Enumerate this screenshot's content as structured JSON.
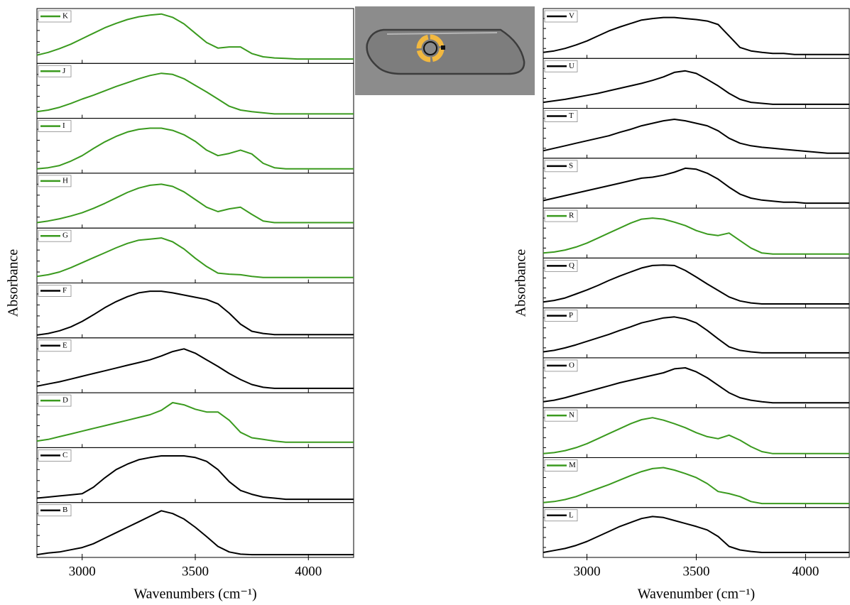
{
  "chart_data": [
    {
      "type": "line",
      "xlabel": "Wavenumbers (cm⁻¹)",
      "ylabel": "Absorbance",
      "xlim": [
        2800,
        4200
      ],
      "xticks": [
        3000,
        3500,
        4000
      ],
      "ylim": [
        0,
        1
      ],
      "x": [
        2800,
        2850,
        2900,
        2950,
        3000,
        3050,
        3100,
        3150,
        3200,
        3250,
        3300,
        3350,
        3400,
        3450,
        3500,
        3550,
        3600,
        3650,
        3700,
        3750,
        3800,
        3850,
        3900,
        3950,
        4000,
        4050,
        4100,
        4150,
        4200
      ],
      "series": [
        {
          "name": "K",
          "color": "#3a9a1e",
          "values": [
            0.15,
            0.2,
            0.27,
            0.35,
            0.45,
            0.55,
            0.65,
            0.73,
            0.8,
            0.85,
            0.88,
            0.9,
            0.84,
            0.72,
            0.55,
            0.38,
            0.28,
            0.3,
            0.3,
            0.18,
            0.12,
            0.1,
            0.09,
            0.08,
            0.08,
            0.08,
            0.08,
            0.08,
            0.08
          ]
        },
        {
          "name": "J",
          "color": "#3a9a1e",
          "values": [
            0.12,
            0.15,
            0.2,
            0.27,
            0.35,
            0.42,
            0.5,
            0.58,
            0.65,
            0.72,
            0.78,
            0.82,
            0.8,
            0.72,
            0.6,
            0.48,
            0.35,
            0.22,
            0.15,
            0.12,
            0.1,
            0.08,
            0.08,
            0.08,
            0.08,
            0.08,
            0.08,
            0.08,
            0.08
          ]
        },
        {
          "name": "I",
          "color": "#3a9a1e",
          "values": [
            0.08,
            0.1,
            0.14,
            0.22,
            0.32,
            0.45,
            0.57,
            0.67,
            0.75,
            0.8,
            0.82,
            0.82,
            0.78,
            0.7,
            0.58,
            0.42,
            0.32,
            0.36,
            0.42,
            0.35,
            0.18,
            0.1,
            0.08,
            0.08,
            0.08,
            0.08,
            0.08,
            0.08,
            0.08
          ]
        },
        {
          "name": "H",
          "color": "#3a9a1e",
          "values": [
            0.1,
            0.13,
            0.17,
            0.22,
            0.28,
            0.36,
            0.45,
            0.55,
            0.65,
            0.73,
            0.78,
            0.8,
            0.76,
            0.66,
            0.52,
            0.38,
            0.3,
            0.35,
            0.38,
            0.25,
            0.13,
            0.1,
            0.1,
            0.1,
            0.1,
            0.1,
            0.1,
            0.1,
            0.1
          ]
        },
        {
          "name": "G",
          "color": "#3a9a1e",
          "values": [
            0.12,
            0.15,
            0.2,
            0.28,
            0.37,
            0.46,
            0.55,
            0.64,
            0.72,
            0.78,
            0.8,
            0.82,
            0.75,
            0.62,
            0.45,
            0.3,
            0.18,
            0.16,
            0.15,
            0.12,
            0.1,
            0.1,
            0.1,
            0.1,
            0.1,
            0.1,
            0.1,
            0.1,
            0.1
          ]
        },
        {
          "name": "F",
          "color": "#000000",
          "values": [
            0.05,
            0.08,
            0.13,
            0.2,
            0.3,
            0.42,
            0.55,
            0.66,
            0.75,
            0.82,
            0.85,
            0.85,
            0.82,
            0.78,
            0.74,
            0.7,
            0.62,
            0.45,
            0.25,
            0.12,
            0.08,
            0.06,
            0.06,
            0.06,
            0.06,
            0.06,
            0.06,
            0.06,
            0.06
          ]
        },
        {
          "name": "E",
          "color": "#000000",
          "values": [
            0.12,
            0.16,
            0.2,
            0.25,
            0.3,
            0.35,
            0.4,
            0.45,
            0.5,
            0.55,
            0.6,
            0.67,
            0.75,
            0.8,
            0.72,
            0.6,
            0.48,
            0.35,
            0.24,
            0.15,
            0.1,
            0.08,
            0.08,
            0.08,
            0.08,
            0.08,
            0.08,
            0.08,
            0.08
          ]
        },
        {
          "name": "D",
          "color": "#3a9a1e",
          "values": [
            0.12,
            0.15,
            0.2,
            0.25,
            0.3,
            0.35,
            0.4,
            0.45,
            0.5,
            0.55,
            0.6,
            0.68,
            0.82,
            0.78,
            0.7,
            0.65,
            0.65,
            0.5,
            0.28,
            0.18,
            0.15,
            0.12,
            0.1,
            0.1,
            0.1,
            0.1,
            0.1,
            0.1,
            0.1
          ]
        },
        {
          "name": "C",
          "color": "#000000",
          "values": [
            0.08,
            0.1,
            0.12,
            0.14,
            0.16,
            0.28,
            0.45,
            0.6,
            0.7,
            0.78,
            0.82,
            0.85,
            0.85,
            0.85,
            0.82,
            0.75,
            0.6,
            0.38,
            0.22,
            0.15,
            0.1,
            0.08,
            0.06,
            0.06,
            0.06,
            0.06,
            0.06,
            0.06,
            0.06
          ]
        },
        {
          "name": "B",
          "color": "#000000",
          "values": [
            0.05,
            0.08,
            0.1,
            0.14,
            0.18,
            0.25,
            0.35,
            0.45,
            0.55,
            0.65,
            0.75,
            0.85,
            0.8,
            0.7,
            0.55,
            0.38,
            0.2,
            0.1,
            0.06,
            0.05,
            0.05,
            0.05,
            0.05,
            0.05,
            0.05,
            0.05,
            0.05,
            0.05,
            0.05
          ]
        }
      ]
    },
    {
      "type": "line",
      "xlabel": "Wavenumber (cm⁻¹)",
      "ylabel": "Absorbance",
      "xlim": [
        2800,
        4200
      ],
      "xticks": [
        3000,
        3500,
        4000
      ],
      "ylim": [
        0,
        1
      ],
      "x": [
        2800,
        2850,
        2900,
        2950,
        3000,
        3050,
        3100,
        3150,
        3200,
        3250,
        3300,
        3350,
        3400,
        3450,
        3500,
        3550,
        3600,
        3650,
        3700,
        3750,
        3800,
        3850,
        3900,
        3950,
        4000,
        4050,
        4100,
        4150,
        4200
      ],
      "series": [
        {
          "name": "V",
          "color": "#000000",
          "values": [
            0.12,
            0.15,
            0.2,
            0.27,
            0.35,
            0.45,
            0.55,
            0.63,
            0.7,
            0.77,
            0.8,
            0.82,
            0.82,
            0.8,
            0.78,
            0.75,
            0.68,
            0.45,
            0.22,
            0.15,
            0.12,
            0.1,
            0.1,
            0.08,
            0.08,
            0.08,
            0.08,
            0.08,
            0.08
          ]
        },
        {
          "name": "U",
          "color": "#000000",
          "values": [
            0.12,
            0.15,
            0.18,
            0.22,
            0.26,
            0.3,
            0.35,
            0.4,
            0.45,
            0.5,
            0.56,
            0.63,
            0.72,
            0.75,
            0.7,
            0.58,
            0.45,
            0.3,
            0.18,
            0.12,
            0.1,
            0.08,
            0.08,
            0.08,
            0.08,
            0.08,
            0.08,
            0.08,
            0.08
          ]
        },
        {
          "name": "T",
          "color": "#000000",
          "values": [
            0.15,
            0.2,
            0.25,
            0.3,
            0.35,
            0.4,
            0.45,
            0.52,
            0.58,
            0.65,
            0.7,
            0.75,
            0.78,
            0.75,
            0.7,
            0.65,
            0.55,
            0.4,
            0.3,
            0.25,
            0.22,
            0.2,
            0.18,
            0.16,
            0.14,
            0.12,
            0.1,
            0.1,
            0.1
          ]
        },
        {
          "name": "S",
          "color": "#000000",
          "values": [
            0.15,
            0.2,
            0.25,
            0.3,
            0.35,
            0.4,
            0.45,
            0.5,
            0.55,
            0.6,
            0.62,
            0.66,
            0.72,
            0.8,
            0.78,
            0.7,
            0.58,
            0.42,
            0.28,
            0.2,
            0.16,
            0.14,
            0.12,
            0.12,
            0.1,
            0.1,
            0.1,
            0.1,
            0.1
          ]
        },
        {
          "name": "R",
          "color": "#3a9a1e",
          "values": [
            0.1,
            0.12,
            0.16,
            0.22,
            0.3,
            0.4,
            0.5,
            0.6,
            0.7,
            0.78,
            0.8,
            0.78,
            0.72,
            0.65,
            0.55,
            0.48,
            0.45,
            0.5,
            0.35,
            0.2,
            0.1,
            0.08,
            0.08,
            0.08,
            0.08,
            0.08,
            0.08,
            0.08,
            0.08
          ]
        },
        {
          "name": "Q",
          "color": "#000000",
          "values": [
            0.12,
            0.15,
            0.2,
            0.28,
            0.36,
            0.45,
            0.55,
            0.64,
            0.72,
            0.8,
            0.85,
            0.86,
            0.85,
            0.75,
            0.62,
            0.48,
            0.35,
            0.22,
            0.14,
            0.1,
            0.08,
            0.08,
            0.08,
            0.08,
            0.08,
            0.08,
            0.08,
            0.08,
            0.08
          ]
        },
        {
          "name": "P",
          "color": "#000000",
          "values": [
            0.12,
            0.15,
            0.2,
            0.26,
            0.33,
            0.4,
            0.47,
            0.55,
            0.62,
            0.7,
            0.75,
            0.8,
            0.82,
            0.78,
            0.7,
            0.55,
            0.38,
            0.22,
            0.15,
            0.12,
            0.1,
            0.1,
            0.1,
            0.1,
            0.1,
            0.1,
            0.1,
            0.1,
            0.1
          ]
        },
        {
          "name": "O",
          "color": "#000000",
          "values": [
            0.12,
            0.15,
            0.2,
            0.26,
            0.32,
            0.38,
            0.44,
            0.5,
            0.55,
            0.6,
            0.65,
            0.7,
            0.78,
            0.8,
            0.72,
            0.6,
            0.45,
            0.3,
            0.2,
            0.15,
            0.12,
            0.1,
            0.1,
            0.1,
            0.1,
            0.1,
            0.1,
            0.1,
            0.1
          ]
        },
        {
          "name": "N",
          "color": "#3a9a1e",
          "values": [
            0.08,
            0.1,
            0.14,
            0.2,
            0.28,
            0.38,
            0.48,
            0.58,
            0.68,
            0.76,
            0.8,
            0.75,
            0.68,
            0.6,
            0.5,
            0.42,
            0.38,
            0.45,
            0.35,
            0.22,
            0.12,
            0.08,
            0.08,
            0.08,
            0.08,
            0.08,
            0.08,
            0.08,
            0.08
          ]
        },
        {
          "name": "M",
          "color": "#3a9a1e",
          "values": [
            0.1,
            0.12,
            0.16,
            0.22,
            0.3,
            0.38,
            0.46,
            0.55,
            0.64,
            0.72,
            0.78,
            0.8,
            0.75,
            0.68,
            0.6,
            0.48,
            0.32,
            0.28,
            0.22,
            0.12,
            0.08,
            0.08,
            0.08,
            0.08,
            0.08,
            0.08,
            0.08,
            0.08,
            0.08
          ]
        },
        {
          "name": "L",
          "color": "#000000",
          "values": [
            0.1,
            0.14,
            0.18,
            0.24,
            0.32,
            0.42,
            0.52,
            0.62,
            0.7,
            0.78,
            0.82,
            0.8,
            0.74,
            0.68,
            0.62,
            0.55,
            0.42,
            0.22,
            0.15,
            0.12,
            0.1,
            0.1,
            0.1,
            0.1,
            0.1,
            0.1,
            0.1,
            0.1,
            0.1
          ]
        }
      ]
    }
  ]
}
